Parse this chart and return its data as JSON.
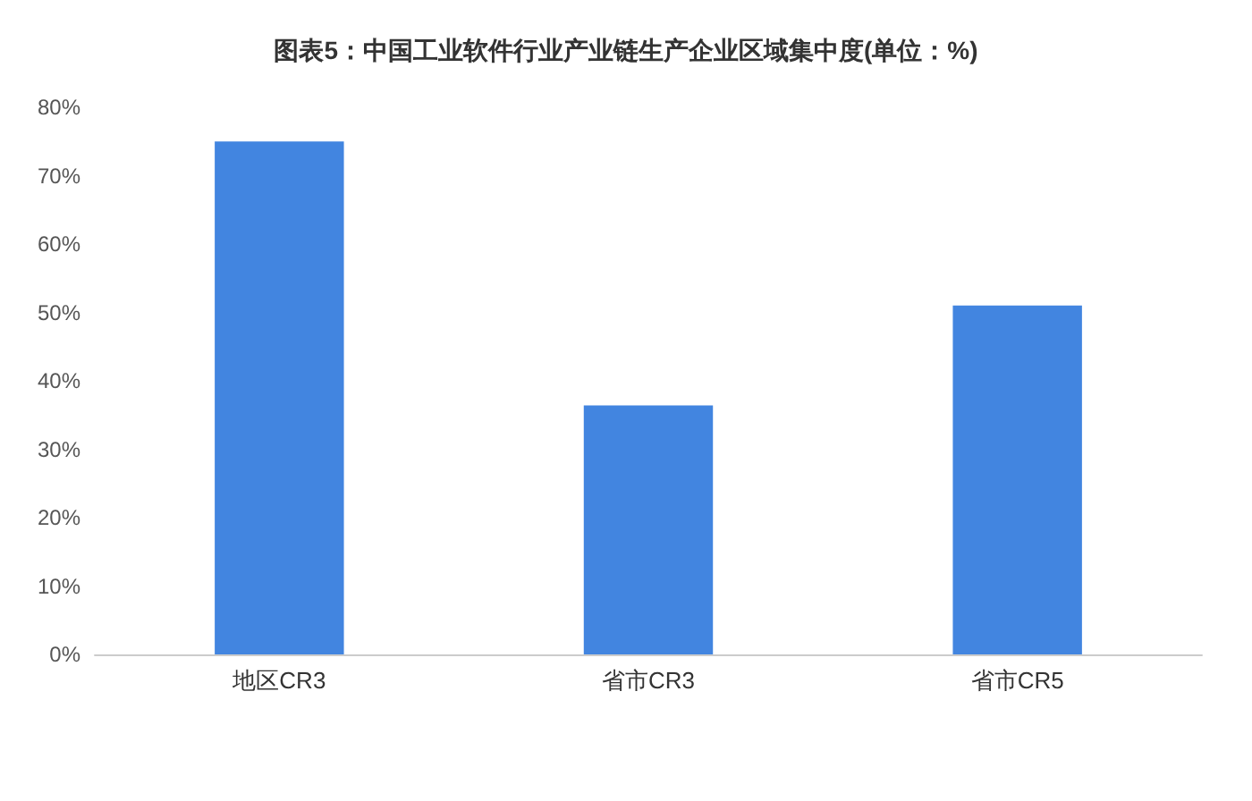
{
  "chart_data": {
    "type": "bar",
    "title": "图表5：中国工业软件行业产业链生产企业区域集中度(单位：%)",
    "categories": [
      "地区CR3",
      "省市CR3",
      "省市CR5"
    ],
    "values": [
      75,
      36.4,
      51
    ],
    "color": "#4285e0",
    "ylim": [
      0,
      80
    ],
    "yticks": [
      {
        "value": 0,
        "label": "0%"
      },
      {
        "value": 10,
        "label": "10%"
      },
      {
        "value": 20,
        "label": "20%"
      },
      {
        "value": 30,
        "label": "30%"
      },
      {
        "value": 40,
        "label": "40%"
      },
      {
        "value": 50,
        "label": "50%"
      },
      {
        "value": 60,
        "label": "60%"
      },
      {
        "value": 70,
        "label": "70%"
      },
      {
        "value": 80,
        "label": "80%"
      }
    ],
    "grid": false
  }
}
